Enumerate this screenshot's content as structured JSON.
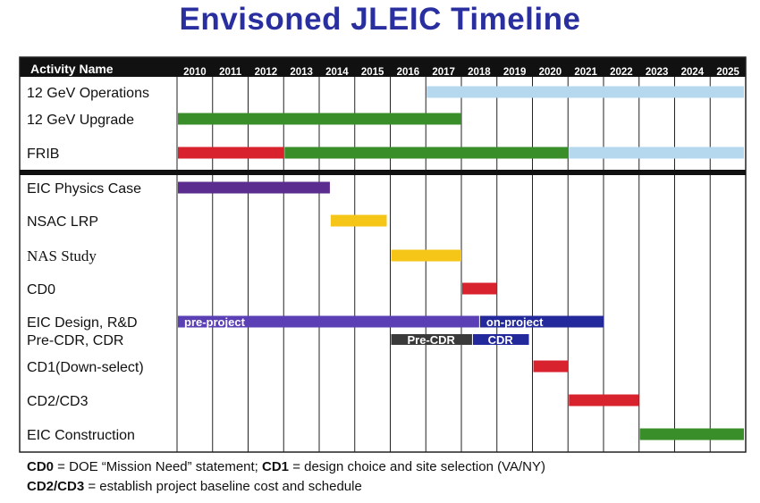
{
  "title": "Envisoned JLEIC Timeline",
  "chart_data": {
    "type": "gantt",
    "header_label": "Activity Name",
    "years": [
      "2010",
      "2011",
      "2012",
      "2013",
      "2014",
      "2015",
      "2016",
      "2017",
      "2018",
      "2019",
      "2020",
      "2021",
      "2022",
      "2023",
      "2024",
      "2025"
    ],
    "rows": [
      {
        "label": "12 GeV Operations",
        "serif": false
      },
      {
        "label": "12 GeV Upgrade",
        "serif": false
      },
      {
        "label": "FRIB",
        "serif": false
      },
      {
        "label": "EIC Physics Case",
        "serif": false
      },
      {
        "label": "NSAC LRP",
        "serif": false
      },
      {
        "label": "NAS Study",
        "serif": true
      },
      {
        "label": "CD0",
        "serif": false
      },
      {
        "label": "EIC Design,  R&D",
        "serif": false
      },
      {
        "label": "Pre-CDR, CDR",
        "serif": false
      },
      {
        "label": "CD1(Down-select)",
        "serif": false
      },
      {
        "label": "CD2/CD3",
        "serif": false
      },
      {
        "label": "EIC Construction",
        "serif": false
      }
    ],
    "bars": [
      {
        "activity": "12 GeV Operations",
        "start": 2017.0,
        "end": 2026.0,
        "color": "#b5d8ef"
      },
      {
        "activity": "12 GeV Upgrade",
        "start": 2010.0,
        "end": 2018.0,
        "color": "#3a8e2a"
      },
      {
        "activity": "FRIB",
        "start": 2010.0,
        "end": 2013.0,
        "color": "#d8232f"
      },
      {
        "activity": "FRIB",
        "start": 2013.0,
        "end": 2021.0,
        "color": "#3a8e2a"
      },
      {
        "activity": "FRIB",
        "start": 2021.0,
        "end": 2026.0,
        "color": "#b5d8ef"
      },
      {
        "activity": "EIC Physics Case",
        "start": 2010.0,
        "end": 2014.3,
        "color": "#5b2d8e"
      },
      {
        "activity": "NSAC LRP",
        "start": 2014.3,
        "end": 2015.9,
        "color": "#f5c518"
      },
      {
        "activity": "NAS Study",
        "start": 2016.0,
        "end": 2018.0,
        "color": "#f5c518"
      },
      {
        "activity": "CD0",
        "start": 2018.0,
        "end": 2019.0,
        "color": "#d8232f"
      },
      {
        "activity": "EIC Design,  R&D",
        "start": 2010.0,
        "end": 2018.5,
        "color": "#5b3fb5",
        "label": "pre-project"
      },
      {
        "activity": "EIC Design,  R&D",
        "start": 2018.5,
        "end": 2022.0,
        "color": "#23289a",
        "label": "on-project"
      },
      {
        "activity": "Pre-CDR, CDR",
        "start": 2016.0,
        "end": 2018.3,
        "color": "#3a3a3a",
        "label": "Pre-CDR"
      },
      {
        "activity": "Pre-CDR, CDR",
        "start": 2018.3,
        "end": 2019.9,
        "color": "#23289a",
        "label": "CDR"
      },
      {
        "activity": "CD1(Down-select)",
        "start": 2020.0,
        "end": 2021.0,
        "color": "#d8232f"
      },
      {
        "activity": "CD2/CD3",
        "start": 2021.0,
        "end": 2023.0,
        "color": "#d8232f"
      },
      {
        "activity": "EIC Construction",
        "start": 2023.0,
        "end": 2026.0,
        "color": "#3a8e2a"
      }
    ],
    "colors": {
      "header_bg": "#111111",
      "grid": "#222222",
      "separator": "#111111"
    }
  },
  "footnotes": {
    "line1_a_bold": "CD0",
    "line1_a_text": " = DOE “Mission Need” statement;   ",
    "line1_b_bold": "CD1",
    "line1_b_text": " = design choice and site selection (VA/NY)",
    "line2_bold": "CD2/CD3",
    "line2_text": " = establish project baseline cost and schedule"
  }
}
